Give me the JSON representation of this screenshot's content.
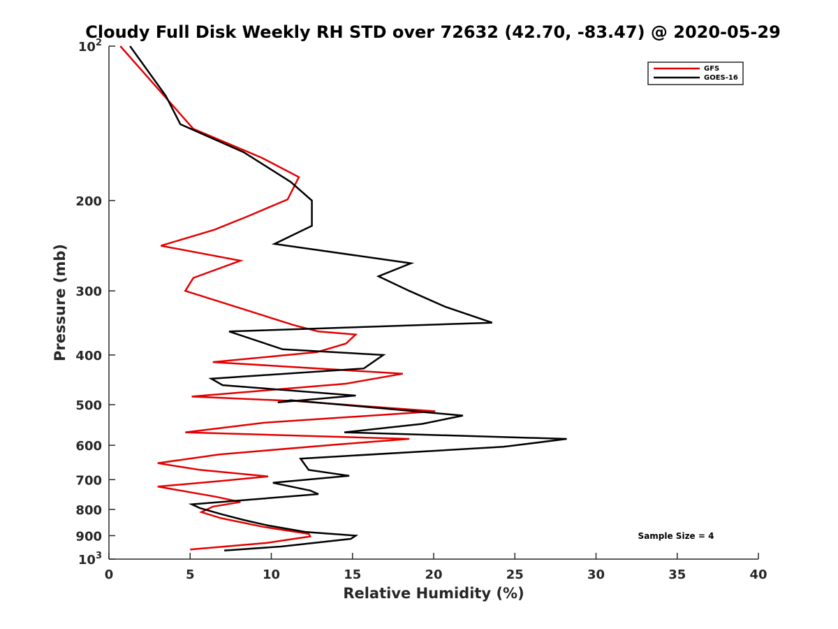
{
  "chart_data": {
    "type": "line",
    "title": "Cloudy Full Disk Weekly RH STD over 72632 (42.70, -83.47) @ 2020-05-29",
    "xlabel": "Relative Humidity (%)",
    "ylabel": "Pressure (mb)",
    "xlim": [
      0,
      40
    ],
    "ylim": [
      100,
      1000
    ],
    "y_scale": "log",
    "y_reversed": true,
    "grid": false,
    "x_ticks": [
      "0",
      "5",
      "10",
      "15",
      "20",
      "25",
      "30",
      "35",
      "40"
    ],
    "y_ticks": [
      {
        "value": 100,
        "label": "10",
        "sup": "2"
      },
      {
        "value": 200,
        "label": "200",
        "sup": ""
      },
      {
        "value": 300,
        "label": "300",
        "sup": ""
      },
      {
        "value": 400,
        "label": "400",
        "sup": ""
      },
      {
        "value": 500,
        "label": "500",
        "sup": ""
      },
      {
        "value": 600,
        "label": "600",
        "sup": ""
      },
      {
        "value": 700,
        "label": "700",
        "sup": ""
      },
      {
        "value": 800,
        "label": "800",
        "sup": ""
      },
      {
        "value": 900,
        "label": "900",
        "sup": ""
      },
      {
        "value": 1000,
        "label": "10",
        "sup": "3"
      }
    ],
    "legend_position": "top-right",
    "annotation": "Sample Size = 4",
    "series": [
      {
        "name": "GFS",
        "color": "#e30000",
        "points": [
          [
            0.7,
            100
          ],
          [
            5.2,
            145
          ],
          [
            9.4,
            165
          ],
          [
            11.7,
            180
          ],
          [
            11.0,
            199
          ],
          [
            8.5,
            215
          ],
          [
            6.5,
            228
          ],
          [
            3.2,
            245
          ],
          [
            8.1,
            262
          ],
          [
            5.2,
            283
          ],
          [
            4.7,
            300
          ],
          [
            8.6,
            328
          ],
          [
            11.4,
            350
          ],
          [
            12.9,
            360
          ],
          [
            15.2,
            365
          ],
          [
            14.6,
            380
          ],
          [
            12.8,
            395
          ],
          [
            6.4,
            413
          ],
          [
            18.1,
            435
          ],
          [
            14.6,
            455
          ],
          [
            5.1,
            482
          ],
          [
            11.5,
            492
          ],
          [
            20.1,
            515
          ],
          [
            9.6,
            542
          ],
          [
            4.7,
            566
          ],
          [
            18.5,
            583
          ],
          [
            14.0,
            598
          ],
          [
            6.8,
            625
          ],
          [
            3.0,
            650
          ],
          [
            5.6,
            670
          ],
          [
            9.8,
            690
          ],
          [
            6.7,
            705
          ],
          [
            3.0,
            722
          ],
          [
            6.6,
            756
          ],
          [
            8.1,
            774
          ],
          [
            6.4,
            790
          ],
          [
            5.7,
            810
          ],
          [
            6.9,
            832
          ],
          [
            9.5,
            865
          ],
          [
            12.3,
            893
          ],
          [
            12.4,
            903
          ],
          [
            9.7,
            930
          ],
          [
            5.0,
            958
          ]
        ]
      },
      {
        "name": "GOES-16",
        "color": "#000000",
        "points": [
          [
            1.3,
            100
          ],
          [
            3.5,
            125
          ],
          [
            4.4,
            142
          ],
          [
            8.3,
            161
          ],
          [
            11.2,
            184
          ],
          [
            12.5,
            200
          ],
          [
            12.5,
            224
          ],
          [
            10.2,
            243
          ],
          [
            18.6,
            265
          ],
          [
            16.6,
            281
          ],
          [
            18.5,
            300
          ],
          [
            20.7,
            322
          ],
          [
            23.6,
            346
          ],
          [
            7.4,
            360
          ],
          [
            10.7,
            390
          ],
          [
            16.9,
            400
          ],
          [
            15.7,
            425
          ],
          [
            6.3,
            445
          ],
          [
            7.0,
            458
          ],
          [
            15.2,
            480
          ],
          [
            10.4,
            495
          ],
          [
            11.2,
            490
          ],
          [
            21.8,
            525
          ],
          [
            19.3,
            545
          ],
          [
            14.5,
            566
          ],
          [
            28.2,
            583
          ],
          [
            24.3,
            604
          ],
          [
            11.8,
            637
          ],
          [
            12.3,
            670
          ],
          [
            14.8,
            688
          ],
          [
            10.1,
            710
          ],
          [
            12.4,
            735
          ],
          [
            12.9,
            747
          ],
          [
            5.1,
            782
          ],
          [
            5.6,
            795
          ],
          [
            6.9,
            817
          ],
          [
            8.3,
            839
          ],
          [
            9.8,
            860
          ],
          [
            12.1,
            885
          ],
          [
            15.2,
            900
          ],
          [
            14.9,
            913
          ],
          [
            10.6,
            945
          ],
          [
            7.1,
            962
          ]
        ]
      }
    ]
  }
}
